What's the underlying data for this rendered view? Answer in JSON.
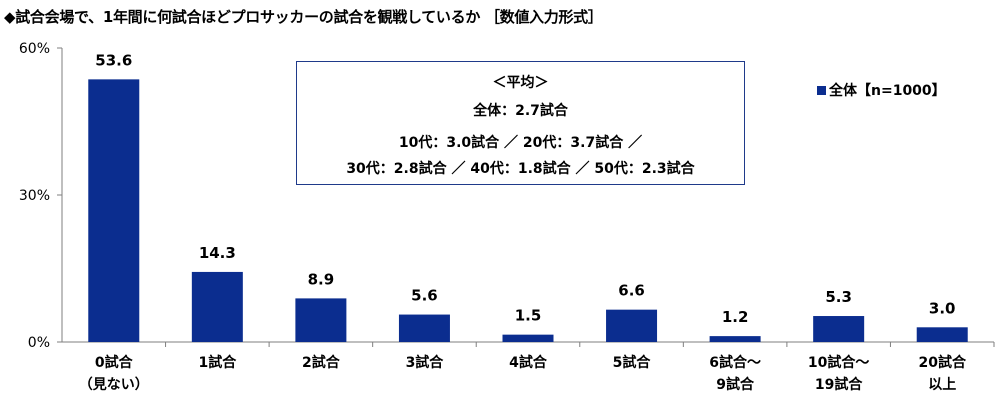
{
  "title": "◆試合会場で、1年間に何試合ほどプロサッカーの試合を観戦しているか ［数値入力形式］",
  "average_box": {
    "heading": "＜平均＞",
    "overall": "全体：2.7試合",
    "line1": "10代：3.0試合 ／ 20代：3.7試合 ／",
    "line2": "30代：2.8試合 ／ 40代：1.8試合 ／ 50代：2.3試合"
  },
  "colors": {
    "bar": "#0b2d8f",
    "box_border": "#1f3a8a"
  },
  "chart_data": {
    "type": "bar",
    "categories": [
      [
        "0試合",
        "（見ない）"
      ],
      [
        "1試合"
      ],
      [
        "2試合"
      ],
      [
        "3試合"
      ],
      [
        "4試合"
      ],
      [
        "5試合"
      ],
      [
        "6試合～",
        "9試合"
      ],
      [
        "10試合～",
        "19試合"
      ],
      [
        "20試合",
        "以上"
      ]
    ],
    "series": [
      {
        "name": "全体【n=1000】",
        "values": [
          53.6,
          14.3,
          8.9,
          5.6,
          1.5,
          6.6,
          1.2,
          5.3,
          3.0
        ]
      }
    ],
    "data_labels": [
      "53.6",
      "14.3",
      "8.9",
      "5.6",
      "1.5",
      "6.6",
      "1.2",
      "5.3",
      "3.0"
    ],
    "ylim": [
      0,
      60
    ],
    "yticks": [
      0,
      30,
      60
    ],
    "ytick_labels": [
      "0%",
      "30%",
      "60%"
    ],
    "grid": false,
    "legend_position": "top-right"
  }
}
